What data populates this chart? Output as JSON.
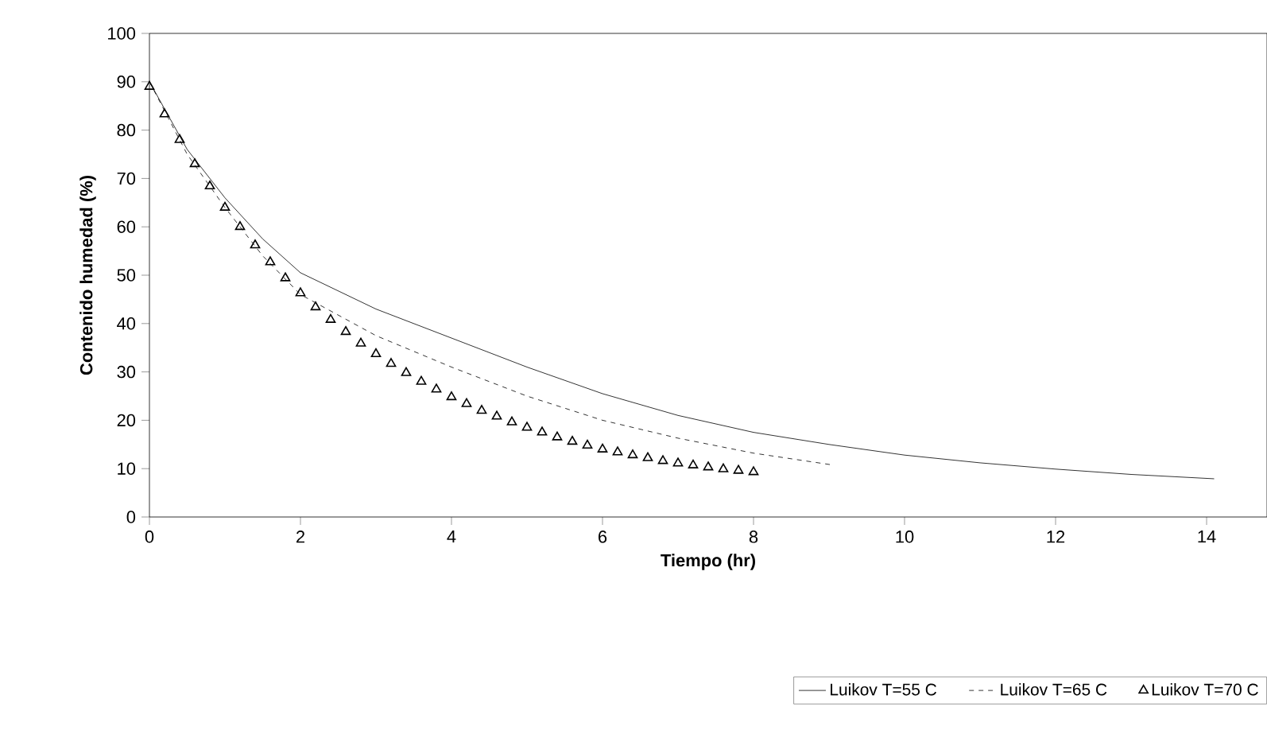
{
  "chart_data": {
    "type": "line",
    "xlabel": "Tiempo (hr)",
    "ylabel": "Contenido humedad (%)",
    "xlim": [
      0,
      14.8
    ],
    "ylim": [
      0,
      100
    ],
    "xticks": [
      0,
      2,
      4,
      6,
      8,
      10,
      12,
      14
    ],
    "yticks": [
      0,
      10,
      20,
      30,
      40,
      50,
      60,
      70,
      80,
      90,
      100
    ],
    "grid": false,
    "legend": "bottom",
    "series": [
      {
        "name": "Luikov T=55 C",
        "color": "#000000",
        "line_style": "solid",
        "marker": "none",
        "x": [
          0,
          0.5,
          1,
          1.5,
          2,
          3,
          4,
          5,
          6,
          7,
          8,
          9,
          10,
          11,
          12,
          13,
          14.1
        ],
        "values": [
          90,
          76,
          66,
          57.5,
          50.5,
          43,
          37,
          31,
          25.5,
          21,
          17.5,
          15,
          12.8,
          11.2,
          9.9,
          8.8,
          7.9
        ]
      },
      {
        "name": "Luikov T=65 C",
        "color": "#000000",
        "line_style": "dashed",
        "marker": "none",
        "x": [
          0,
          0.5,
          1,
          1.5,
          2,
          3,
          4,
          5,
          6,
          7,
          8,
          9.03
        ],
        "values": [
          90,
          75,
          64,
          54,
          46,
          37.5,
          31,
          25,
          20,
          16.3,
          13.2,
          10.8
        ]
      },
      {
        "name": "Luikov T=70 C",
        "type": "scatter",
        "color": "#000000",
        "marker": "triangle",
        "x": [
          0,
          0.2,
          0.4,
          0.6,
          0.8,
          1,
          1.2,
          1.4,
          1.6,
          1.8,
          2,
          2.2,
          2.4,
          2.6,
          2.8,
          3,
          3.2,
          3.4,
          3.6,
          3.8,
          4,
          4.2,
          4.4,
          4.6,
          4.8,
          5,
          5.2,
          5.4,
          5.6,
          5.8,
          6,
          6.2,
          6.4,
          6.6,
          6.8,
          7,
          7.2,
          7.4,
          7.6,
          7.8,
          8
        ],
        "values": [
          89,
          83.3,
          78,
          73,
          68.4,
          64,
          60,
          56.2,
          52.7,
          49.4,
          46.3,
          43.4,
          40.8,
          38.3,
          35.9,
          33.7,
          31.7,
          29.8,
          28,
          26.4,
          24.8,
          23.4,
          22,
          20.8,
          19.6,
          18.5,
          17.5,
          16.5,
          15.6,
          14.8,
          14,
          13.4,
          12.8,
          12.2,
          11.6,
          11.1,
          10.7,
          10.3,
          9.9,
          9.6,
          9.3
        ]
      }
    ]
  }
}
